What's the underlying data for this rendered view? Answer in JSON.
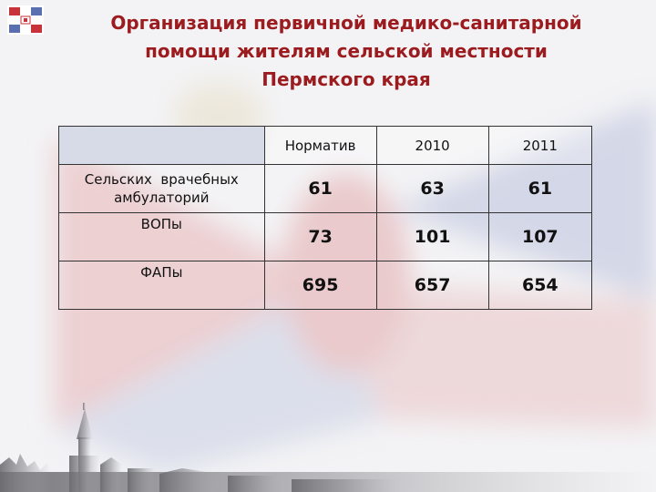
{
  "title": {
    "line1": "Организация первичной медико-санитарной",
    "line2": "помощи жителям сельской местности",
    "line3": "Пермского края"
  },
  "table": {
    "headers": [
      "",
      "Норматив",
      "2010",
      "2011"
    ],
    "rows": [
      {
        "label_line1": "Сельских  врачебных",
        "label_line2": "амбулаторий",
        "values": [
          "61",
          "63",
          "61"
        ]
      },
      {
        "label_line1": "ВОПы",
        "label_line2": "",
        "values": [
          "73",
          "101",
          "107"
        ]
      },
      {
        "label_line1": "ФАПы",
        "label_line2": "",
        "values": [
          "695",
          "657",
          "654"
        ]
      }
    ]
  },
  "colors": {
    "title": "#9b1b1e",
    "flag_red": "#c8323a",
    "flag_blue": "#5a6fb0",
    "header_fill": "#d7dbe8"
  },
  "icons": {
    "logo": "perm-krai-flag-logo",
    "background": "perm-krai-flag-watermark",
    "skyline": "perm-city-skyline-silhouette"
  }
}
